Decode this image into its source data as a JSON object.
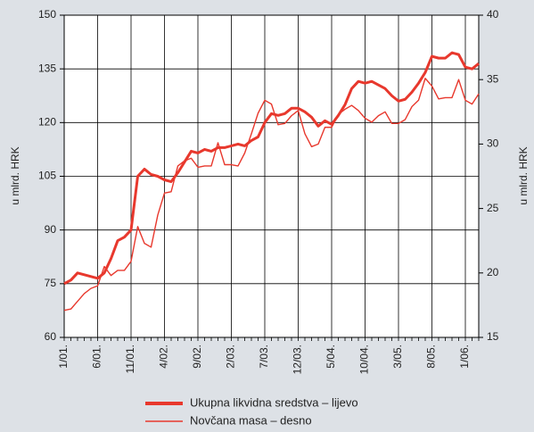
{
  "chart_data": {
    "type": "line",
    "ylabel": "u mlrd. HRK",
    "y2label": "u mlrd. HRK",
    "categories": [
      "1/01.",
      null,
      null,
      null,
      null,
      "6/01.",
      null,
      null,
      null,
      null,
      "11/01.",
      null,
      null,
      null,
      null,
      "4/02.",
      null,
      null,
      null,
      null,
      "9/02.",
      null,
      null,
      null,
      null,
      "2/03.",
      null,
      null,
      null,
      null,
      "7/03.",
      null,
      null,
      null,
      null,
      "12/03.",
      null,
      null,
      null,
      null,
      "5/04.",
      null,
      null,
      null,
      null,
      "10/04.",
      null,
      null,
      null,
      null,
      "3/05.",
      null,
      null,
      null,
      null,
      "8/05.",
      null,
      null,
      null,
      null,
      "1/06.",
      null,
      null
    ],
    "ylim": [
      60,
      150
    ],
    "yticks": [
      60,
      75,
      90,
      105,
      120,
      135,
      150
    ],
    "y2lim": [
      15,
      40
    ],
    "y2ticks": [
      15,
      20,
      25,
      30,
      35,
      40
    ],
    "grid": true,
    "series": [
      {
        "name": "Ukupna likvidna sredstva – lijevo",
        "color": "#e8382d",
        "axis": "y",
        "values": [
          75,
          76,
          78,
          77.5,
          77,
          76.5,
          78,
          82,
          87,
          88,
          90,
          105,
          107,
          105.5,
          105,
          104,
          103.5,
          106,
          109,
          112,
          111.5,
          112.5,
          112,
          113,
          113,
          113.5,
          114,
          113.5,
          115,
          116,
          120,
          122.5,
          122,
          122.5,
          124,
          124,
          123,
          121.5,
          119,
          120.5,
          119.5,
          122,
          125,
          129.5,
          131.5,
          131,
          131.5,
          130.5,
          129.5,
          127.5,
          126,
          126.5,
          128.5,
          131,
          134,
          138.5,
          138,
          138,
          139.5,
          139,
          135.5,
          135,
          136.5
        ]
      },
      {
        "name": "Novčana masa – desno",
        "color": "#e8382d",
        "axis": "y2",
        "values": [
          17.1,
          17.2,
          17.8,
          18.4,
          18.8,
          19.0,
          20.5,
          19.8,
          20.2,
          20.2,
          20.9,
          23.6,
          22.3,
          22.0,
          24.5,
          26.2,
          26.3,
          28.3,
          28.7,
          28.9,
          28.2,
          28.3,
          28.3,
          30.1,
          28.4,
          28.4,
          28.3,
          29.3,
          30.8,
          32.4,
          33.4,
          33.1,
          31.5,
          31.6,
          32.2,
          32.6,
          30.8,
          29.8,
          30.0,
          31.3,
          31.3,
          32.3,
          32.7,
          33.0,
          32.6,
          32.0,
          31.7,
          32.2,
          32.5,
          31.6,
          31.6,
          31.9,
          32.9,
          33.4,
          35.1,
          34.5,
          33.5,
          33.6,
          33.6,
          35.0,
          33.4,
          33.1,
          33.9
        ]
      }
    ]
  }
}
